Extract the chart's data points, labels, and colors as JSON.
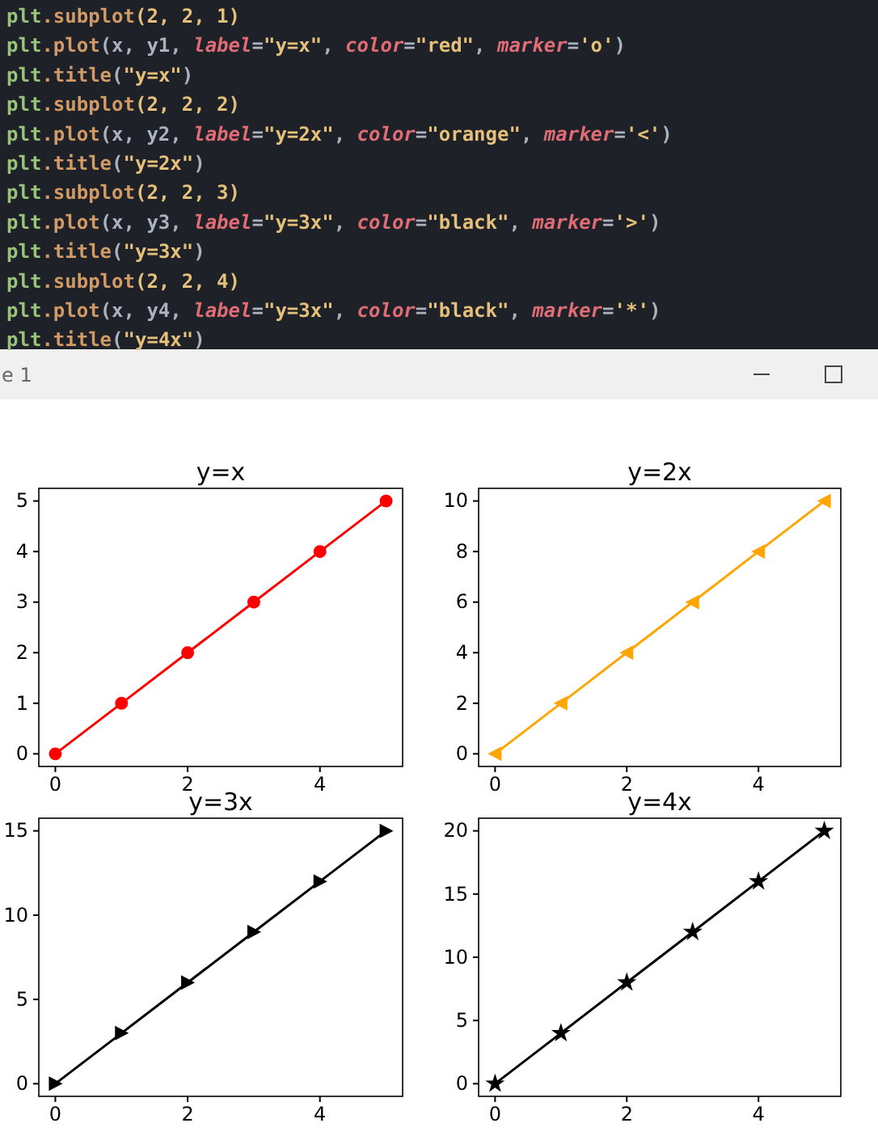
{
  "chart_data": [
    {
      "type": "other",
      "title": "e 1",
      "annotations": [
        "plt.subplot(2, 2, 1)",
        "plt.plot(x, y1, label=\"y=x\", color=\"red\", marker='o')",
        "plt.title(\"y=x\")",
        "plt.subplot(2, 2, 2)",
        "plt.plot(x, y2, label=\"y=2x\", color=\"orange\", marker='<')",
        "plt.title(\"y=2x\")",
        "plt.subplot(2, 2, 3)",
        "plt.plot(x, y3, label=\"y=3x\", color=\"black\", marker='>')",
        "plt.title(\"y=3x\")",
        "plt.subplot(2, 2, 4)",
        "plt.plot(x, y4, label=\"y=3x\", color=\"black\", marker='*')",
        "plt.title(\"y=4x\")"
      ]
    },
    {
      "type": "line",
      "title": "y=x",
      "x": [
        0,
        1,
        2,
        3,
        4,
        5
      ],
      "series": [
        {
          "color": "#ff0000",
          "values": [
            0,
            1,
            2,
            3,
            4,
            5
          ]
        }
      ],
      "marker": "circle",
      "xlim": [
        -0.25,
        5.25
      ],
      "xticks": [
        0,
        2,
        4
      ],
      "ylim": [
        -0.25,
        5.25
      ],
      "yticks": [
        0,
        1,
        2,
        3,
        4,
        5
      ]
    },
    {
      "type": "line",
      "title": "y=2x",
      "x": [
        0,
        1,
        2,
        3,
        4,
        5
      ],
      "series": [
        {
          "color": "#ffa500",
          "values": [
            0,
            2,
            4,
            6,
            8,
            10
          ]
        }
      ],
      "marker": "triangle-left",
      "xlim": [
        -0.25,
        5.25
      ],
      "xticks": [
        0,
        2,
        4
      ],
      "ylim": [
        -0.5,
        10.5
      ],
      "yticks": [
        0,
        2,
        4,
        6,
        8,
        10
      ]
    },
    {
      "type": "line",
      "title": "y=3x",
      "x": [
        0,
        1,
        2,
        3,
        4,
        5
      ],
      "series": [
        {
          "color": "#000000",
          "values": [
            0,
            3,
            6,
            9,
            12,
            15
          ]
        }
      ],
      "marker": "triangle-right",
      "xlim": [
        -0.25,
        5.25
      ],
      "xticks": [
        0,
        2,
        4
      ],
      "ylim": [
        -0.75,
        15.75
      ],
      "yticks": [
        0,
        5,
        10,
        15
      ]
    },
    {
      "type": "line",
      "title": "y=4x",
      "x": [
        0,
        1,
        2,
        3,
        4,
        5
      ],
      "series": [
        {
          "color": "#000000",
          "values": [
            0,
            4,
            8,
            12,
            16,
            20
          ]
        }
      ],
      "marker": "star",
      "xlim": [
        -0.25,
        5.25
      ],
      "xticks": [
        0,
        2,
        4
      ],
      "ylim": [
        -1,
        21
      ],
      "yticks": [
        0,
        5,
        10,
        15,
        20
      ]
    }
  ]
}
